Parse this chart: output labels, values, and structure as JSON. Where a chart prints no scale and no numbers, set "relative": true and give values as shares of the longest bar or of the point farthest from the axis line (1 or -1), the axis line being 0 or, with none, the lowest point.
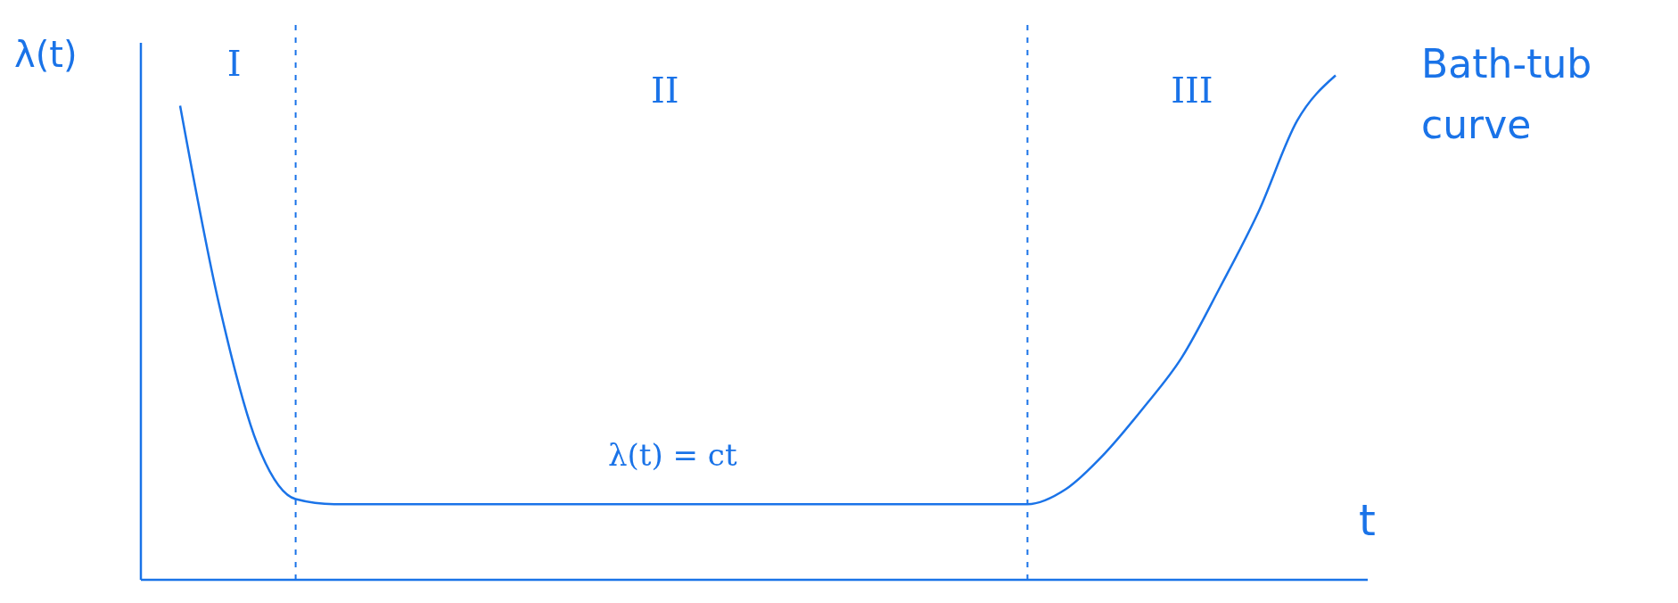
{
  "chart_data": {
    "type": "line",
    "title": "Bath-tub curve",
    "xlabel": "t",
    "ylabel": "λ(t)",
    "annotations": [
      "I",
      "II",
      "III",
      "λ(t) = ct"
    ],
    "relative": true,
    "categories": [
      null,
      null,
      null,
      null,
      null,
      null,
      null,
      null,
      null,
      null,
      null,
      null,
      null,
      null,
      null,
      null,
      null,
      null,
      null,
      null,
      null,
      null,
      null,
      null,
      null,
      null,
      null,
      null,
      null,
      null,
      null
    ],
    "series": [
      {
        "color": "#1a73e8",
        "values": [
          0.94,
          0.55,
          0.27,
          0.16,
          0.15,
          0.15,
          0.15,
          0.15,
          0.15,
          0.15,
          0.15,
          0.15,
          0.15,
          0.15,
          0.15,
          0.15,
          0.15,
          0.15,
          0.15,
          0.15,
          0.15,
          0.15,
          0.15,
          0.18,
          0.25,
          0.34,
          0.44,
          0.58,
          0.73,
          0.91,
          1
        ]
      }
    ],
    "marker": "none",
    "line_style": "solid"
  }
}
